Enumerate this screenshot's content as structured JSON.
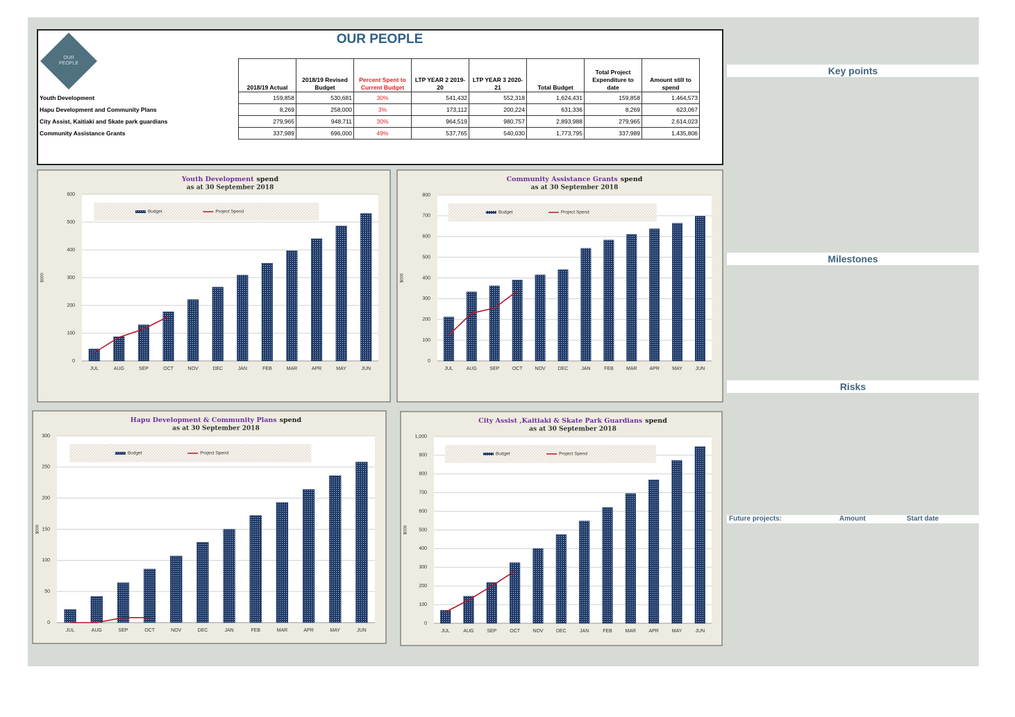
{
  "header": {
    "title": "OUR PEOPLE",
    "logo_text": "OUR PEOPLE"
  },
  "table": {
    "columns": [
      "2018/19 Actual",
      "2018/19 Revised Budget",
      "Percent Spent to Current Budget",
      "LTP YEAR 2 2019-20",
      "LTP YEAR 3 2020-21",
      "Total Budget",
      "Total Project Expenditure to date",
      "Amount still to spend"
    ],
    "rows": [
      {
        "label": "Youth Development",
        "cells": [
          "159,858",
          "530,681",
          "30%",
          "541,432",
          "552,318",
          "1,624,431",
          "159,858",
          "1,464,573"
        ]
      },
      {
        "label": "Hapu Development and Community Plans",
        "cells": [
          "8,269",
          "258,000",
          "3%",
          "173,112",
          "200,224",
          "631,336",
          "8,269",
          "623,067"
        ]
      },
      {
        "label": "City Assist, Kaitiaki and Skate park guardians",
        "cells": [
          "279,965",
          "948,711",
          "30%",
          "964,519",
          "980,757",
          "2,893,988",
          "279,965",
          "2,614,023"
        ]
      },
      {
        "label": "Community Assistance Grants",
        "cells": [
          "337,989",
          "696,000",
          "49%",
          "537,765",
          "540,030",
          "1,773,795",
          "337,989",
          "1,435,806"
        ]
      }
    ]
  },
  "sidebar": {
    "sections": [
      "Key points",
      "Milestones",
      "Risks"
    ],
    "future": [
      "Future projects:",
      "Amount",
      "Start date"
    ]
  },
  "chart_data": [
    {
      "type": "combo",
      "title": "Youth Development",
      "title_suffix": "spend",
      "title_color": "#7030a0",
      "subtitle": "as at 30 September 2018",
      "y_label": "$000",
      "categories": [
        "JUL",
        "AUG",
        "SEP",
        "OCT",
        "NOV",
        "DEC",
        "JAN",
        "FEB",
        "MAR",
        "APR",
        "MAY",
        "JUN"
      ],
      "ylim": [
        0,
        600
      ],
      "yticks": [
        0,
        100,
        200,
        300,
        400,
        500,
        600
      ],
      "grid": true,
      "series": [
        {
          "name": "Budget",
          "type": "bar",
          "color": "#1f3a68",
          "values": [
            43,
            87,
            130,
            177,
            221,
            266,
            309,
            352,
            397,
            440,
            486,
            531
          ]
        },
        {
          "name": "Project Spend",
          "type": "line",
          "color": "#b0182c",
          "values": [
            30,
            85,
            115,
            160,
            null,
            null,
            null,
            null,
            null,
            null,
            null,
            null
          ]
        }
      ]
    },
    {
      "type": "combo",
      "title": "Community Assistance  Grants",
      "title_suffix": "spend",
      "title_color": "#7030a0",
      "subtitle": "as at 30 September 2018",
      "y_label": "$000",
      "categories": [
        "JUL",
        "AUG",
        "SEP",
        "OCT",
        "NOV",
        "DEC",
        "JAN",
        "FEB",
        "MAR",
        "APR",
        "MAY",
        "JUN"
      ],
      "ylim": [
        0,
        800
      ],
      "yticks": [
        0,
        100,
        200,
        300,
        400,
        500,
        600,
        700,
        800
      ],
      "grid": true,
      "series": [
        {
          "name": "Budget",
          "type": "bar",
          "color": "#1f3a68",
          "values": [
            212,
            333,
            362,
            390,
            415,
            440,
            543,
            583,
            610,
            637,
            664,
            698
          ]
        },
        {
          "name": "Project Spend",
          "type": "line",
          "color": "#b0182c",
          "values": [
            125,
            230,
            255,
            338,
            null,
            null,
            null,
            null,
            null,
            null,
            null,
            null
          ]
        }
      ]
    },
    {
      "type": "combo",
      "title": "Hapu Development & Community Plans",
      "title_suffix": "spend",
      "title_color": "#7030a0",
      "subtitle": "as at 30 September 2018",
      "y_label": "$000",
      "categories": [
        "JUL",
        "AUG",
        "SEP",
        "OCT",
        "NOV",
        "DEC",
        "JAN",
        "FEB",
        "MAR",
        "APR",
        "MAY",
        "JUN"
      ],
      "ylim": [
        0,
        300
      ],
      "yticks": [
        0,
        50,
        100,
        150,
        200,
        250,
        300
      ],
      "grid": true,
      "series": [
        {
          "name": "Budget",
          "type": "bar",
          "color": "#1f3a68",
          "values": [
            21,
            42,
            64,
            86,
            107,
            129,
            150,
            172,
            193,
            214,
            236,
            258
          ]
        },
        {
          "name": "Project Spend",
          "type": "line",
          "color": "#b0182c",
          "values": [
            0,
            0,
            8,
            8,
            null,
            null,
            null,
            null,
            null,
            null,
            null,
            null
          ]
        }
      ]
    },
    {
      "type": "combo",
      "title": "City Assist ,Kaitiaki & Skate Park Guardians",
      "title_suffix": "spend",
      "title_color": "#7030a0",
      "subtitle": "as at 30 September 2018",
      "y_label": "$000",
      "categories": [
        "JUL",
        "AUG",
        "SEP",
        "OCT",
        "NOV",
        "DEC",
        "JAN",
        "FEB",
        "MAR",
        "APR",
        "MAY",
        "JUN"
      ],
      "ylim": [
        0,
        1000
      ],
      "yticks": [
        0,
        100,
        200,
        300,
        400,
        500,
        600,
        700,
        800,
        900,
        {
          "value": 1000,
          "label": "1,000"
        }
      ],
      "grid": true,
      "series": [
        {
          "name": "Budget",
          "type": "bar",
          "color": "#1f3a68",
          "values": [
            70,
            145,
            218,
            325,
            400,
            475,
            548,
            620,
            695,
            768,
            872,
            946
          ]
        },
        {
          "name": "Project Spend",
          "type": "line",
          "color": "#b0182c",
          "values": [
            60,
            125,
            200,
            280,
            null,
            null,
            null,
            null,
            null,
            null,
            null,
            null
          ]
        }
      ]
    }
  ]
}
